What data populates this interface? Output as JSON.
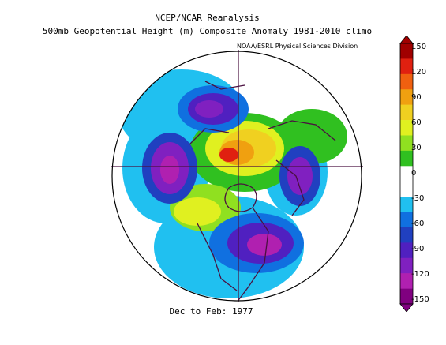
{
  "title": {
    "line1": "NCEP/NCAR Reanalysis",
    "line2": "500mb Geopotential Height (m) Composite Anomaly 1981-2010 climo"
  },
  "credit": "NOAA/ESRL Physical Sciences Division",
  "period": "Dec to Feb: 1977",
  "colorbar": {
    "ticks": [
      "150",
      "120",
      "90",
      "60",
      "30",
      "0",
      "-30",
      "-60",
      "-90",
      "-120",
      "-150"
    ],
    "colors": [
      "#a00000",
      "#e02010",
      "#f06010",
      "#f0a010",
      "#f0d020",
      "#e0f020",
      "#90e020",
      "#30c020",
      "#ffffff",
      "#ffffff",
      "#20c0f0",
      "#1070e0",
      "#2040c0",
      "#5020c0",
      "#8020c0",
      "#b020b0",
      "#800080"
    ]
  },
  "map": {
    "projection": "north-polar-stereographic",
    "coastline_color": "#4a1040",
    "anomaly_centers": [
      {
        "name": "north-pacific-low",
        "sign": "negative",
        "strength": "-120"
      },
      {
        "name": "north-america-low",
        "sign": "negative",
        "strength": "-120"
      },
      {
        "name": "north-atlantic-low",
        "sign": "negative",
        "strength": "-90"
      },
      {
        "name": "east-siberia-low",
        "sign": "negative",
        "strength": "-90"
      },
      {
        "name": "arctic-high",
        "sign": "positive",
        "strength": "150"
      },
      {
        "name": "western-north-america-high",
        "sign": "positive",
        "strength": "90"
      }
    ]
  }
}
